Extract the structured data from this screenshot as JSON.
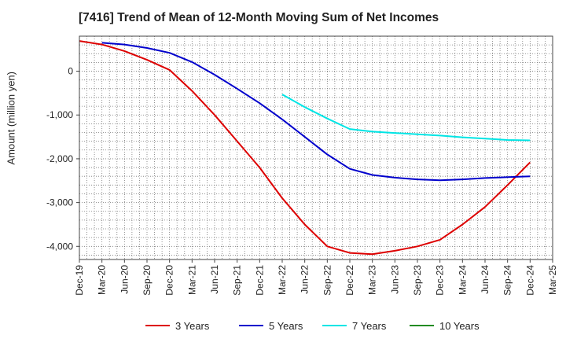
{
  "chart_data": {
    "type": "line",
    "title": "[7416]  Trend of Mean of 12-Month Moving Sum of Net Incomes",
    "xlabel": "",
    "ylabel": "Amount (million yen)",
    "x_ticks": [
      "Dec-19",
      "Mar-20",
      "Jun-20",
      "Sep-20",
      "Dec-20",
      "Mar-21",
      "Jun-21",
      "Sep-21",
      "Dec-21",
      "Mar-22",
      "Jun-22",
      "Sep-22",
      "Dec-22",
      "Mar-23",
      "Jun-23",
      "Sep-23",
      "Dec-23",
      "Mar-24",
      "Jun-24",
      "Sep-24",
      "Dec-24",
      "Mar-25"
    ],
    "y_ticks": [
      0,
      -1000,
      -2000,
      -3000,
      -4000
    ],
    "y_tick_labels": [
      "0",
      "-1,000",
      "-2,000",
      "-3,000",
      "-4,000"
    ],
    "ylim": [
      -4300,
      800
    ],
    "grid": true,
    "legend_position": "bottom",
    "series": [
      {
        "name": "3 Years",
        "color": "#dd0000",
        "x": [
          "Dec-19",
          "Mar-20",
          "Jun-20",
          "Sep-20",
          "Dec-20",
          "Mar-21",
          "Jun-21",
          "Sep-21",
          "Dec-21",
          "Mar-22",
          "Jun-22",
          "Sep-22",
          "Dec-22",
          "Mar-23",
          "Jun-23",
          "Sep-23",
          "Dec-23",
          "Mar-24",
          "Jun-24",
          "Sep-24",
          "Dec-24"
        ],
        "values": [
          690,
          610,
          460,
          260,
          30,
          -450,
          -1000,
          -1600,
          -2200,
          -2900,
          -3500,
          -4000,
          -4150,
          -4180,
          -4100,
          -4000,
          -3850,
          -3500,
          -3100,
          -2600,
          -2080
        ]
      },
      {
        "name": "5 Years",
        "color": "#0000cc",
        "x": [
          "Mar-20",
          "Jun-20",
          "Sep-20",
          "Dec-20",
          "Mar-21",
          "Jun-21",
          "Sep-21",
          "Dec-21",
          "Mar-22",
          "Jun-22",
          "Sep-22",
          "Dec-22",
          "Mar-23",
          "Jun-23",
          "Sep-23",
          "Dec-23",
          "Mar-24",
          "Jun-24",
          "Sep-24",
          "Dec-24"
        ],
        "values": [
          650,
          610,
          530,
          420,
          210,
          -80,
          -400,
          -730,
          -1100,
          -1500,
          -1900,
          -2230,
          -2370,
          -2430,
          -2470,
          -2490,
          -2470,
          -2440,
          -2420,
          -2400
        ]
      },
      {
        "name": "7 Years",
        "color": "#00e5e5",
        "x": [
          "Mar-22",
          "Jun-22",
          "Sep-22",
          "Dec-22",
          "Mar-23",
          "Jun-23",
          "Sep-23",
          "Dec-23",
          "Mar-24",
          "Jun-24",
          "Sep-24",
          "Dec-24"
        ],
        "values": [
          -530,
          -820,
          -1080,
          -1320,
          -1380,
          -1410,
          -1440,
          -1470,
          -1510,
          -1540,
          -1570,
          -1580
        ]
      },
      {
        "name": "10 Years",
        "color": "#228b22",
        "x": [],
        "values": []
      }
    ]
  }
}
